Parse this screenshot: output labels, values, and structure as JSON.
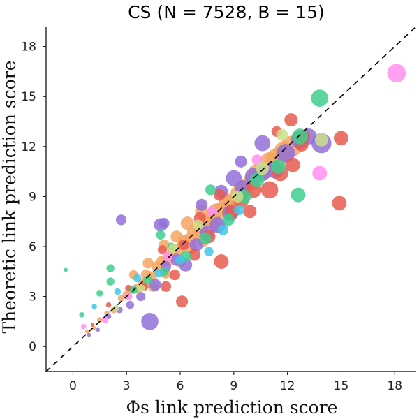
{
  "chart_data": {
    "type": "scatter",
    "title": "CS (N = 7528, B = 15)",
    "xlabel": "Φs link prediction score",
    "ylabel": "Theoretic link prediction score",
    "xlim": [
      -1.5,
      19.2
    ],
    "ylim": [
      -1.5,
      19.2
    ],
    "xticks": [
      0,
      3,
      6,
      9,
      12,
      15,
      18
    ],
    "yticks": [
      0,
      3,
      6,
      9,
      12,
      15,
      18
    ],
    "grid": false,
    "reference_line": "y = x (dashed)",
    "series": [
      {
        "color": "#f4a460",
        "points": [
          [
            0.8,
            0.9,
            3
          ],
          [
            1.2,
            1.1,
            3
          ],
          [
            1.5,
            1.6,
            4
          ],
          [
            1.9,
            2.0,
            4
          ],
          [
            2.3,
            2.2,
            5
          ],
          [
            2.7,
            2.9,
            5
          ],
          [
            3.0,
            3.1,
            6
          ],
          [
            3.3,
            3.4,
            6
          ],
          [
            3.6,
            3.5,
            7
          ],
          [
            3.9,
            3.8,
            7
          ],
          [
            4.1,
            4.3,
            8
          ],
          [
            4.4,
            4.2,
            8
          ],
          [
            4.7,
            4.8,
            8
          ],
          [
            5.0,
            5.1,
            9
          ],
          [
            5.3,
            5.2,
            9
          ],
          [
            5.6,
            5.7,
            9
          ],
          [
            5.9,
            5.8,
            10
          ],
          [
            6.2,
            6.3,
            10
          ],
          [
            6.5,
            6.4,
            10
          ],
          [
            6.8,
            6.9,
            11
          ],
          [
            7.1,
            7.0,
            11
          ],
          [
            7.4,
            7.5,
            11
          ],
          [
            7.7,
            7.6,
            12
          ],
          [
            8.0,
            8.1,
            12
          ],
          [
            8.3,
            8.2,
            12
          ],
          [
            8.6,
            8.7,
            12
          ],
          [
            8.9,
            8.6,
            13
          ],
          [
            9.3,
            9.2,
            13
          ],
          [
            9.6,
            9.5,
            13
          ],
          [
            10.0,
            9.9,
            13
          ],
          [
            10.3,
            10.4,
            14
          ],
          [
            10.7,
            10.6,
            14
          ],
          [
            11.0,
            11.1,
            14
          ],
          [
            11.4,
            11.3,
            15
          ],
          [
            11.8,
            11.7,
            15
          ],
          [
            12.2,
            12.0,
            16
          ],
          [
            4.5,
            3.6,
            8
          ],
          [
            5.2,
            4.4,
            8
          ],
          [
            6.0,
            5.1,
            9
          ],
          [
            6.6,
            5.9,
            9
          ],
          [
            7.3,
            6.4,
            10
          ],
          [
            8.1,
            7.2,
            10
          ],
          [
            3.4,
            4.3,
            7
          ],
          [
            4.2,
            5.0,
            8
          ],
          [
            5.1,
            6.1,
            8
          ],
          [
            5.8,
            6.6,
            9
          ],
          [
            6.4,
            7.4,
            10
          ],
          [
            7.2,
            8.1,
            10
          ]
        ]
      },
      {
        "color": "#9370db",
        "points": [
          [
            0.9,
            0.7,
            3
          ],
          [
            1.4,
            1.0,
            3
          ],
          [
            2.0,
            1.8,
            4
          ],
          [
            2.6,
            2.2,
            5
          ],
          [
            3.2,
            2.5,
            6
          ],
          [
            3.8,
            3.0,
            7
          ],
          [
            4.3,
            1.5,
            13
          ],
          [
            4.6,
            3.7,
            9
          ],
          [
            5.2,
            4.8,
            8
          ],
          [
            5.8,
            5.2,
            9
          ],
          [
            6.3,
            4.9,
            10
          ],
          [
            6.9,
            6.1,
            10
          ],
          [
            7.5,
            6.8,
            11
          ],
          [
            8.1,
            7.3,
            12
          ],
          [
            8.8,
            8.0,
            12
          ],
          [
            9.5,
            9.5,
            12
          ],
          [
            10.1,
            10.2,
            13
          ],
          [
            10.6,
            10.4,
            12
          ],
          [
            11.3,
            10.6,
            13
          ],
          [
            11.9,
            11.6,
            14
          ],
          [
            12.7,
            12.4,
            14
          ],
          [
            13.2,
            12.6,
            12
          ],
          [
            13.9,
            12.2,
            15
          ],
          [
            9.0,
            10.1,
            12
          ],
          [
            8.3,
            9.3,
            10
          ],
          [
            10.6,
            12.2,
            12
          ],
          [
            9.4,
            11.1,
            9
          ],
          [
            5.1,
            7.4,
            8
          ],
          [
            2.7,
            7.6,
            8
          ],
          [
            4.9,
            7.3,
            10
          ],
          [
            7.2,
            8.5,
            9
          ]
        ]
      },
      {
        "color": "#e65a50",
        "points": [
          [
            1.1,
            1.3,
            3
          ],
          [
            2.0,
            2.5,
            4
          ],
          [
            3.1,
            3.5,
            5
          ],
          [
            4.0,
            3.6,
            6
          ],
          [
            5.2,
            3.6,
            8
          ],
          [
            5.7,
            4.3,
            8
          ],
          [
            6.1,
            2.7,
            9
          ],
          [
            6.8,
            5.5,
            9
          ],
          [
            7.6,
            6.6,
            10
          ],
          [
            8.3,
            5.1,
            11
          ],
          [
            8.9,
            8.1,
            11
          ],
          [
            9.4,
            8.8,
            12
          ],
          [
            10.1,
            9.4,
            12
          ],
          [
            11.0,
            9.4,
            13
          ],
          [
            11.6,
            10.4,
            12
          ],
          [
            12.3,
            10.9,
            11
          ],
          [
            12.8,
            12.1,
            10
          ],
          [
            12.2,
            13.6,
            10
          ],
          [
            12.9,
            12.6,
            10
          ],
          [
            15.0,
            12.5,
            11
          ],
          [
            14.9,
            8.6,
            11
          ],
          [
            11.4,
            12.9,
            8
          ],
          [
            9.9,
            8.1,
            10
          ],
          [
            7.1,
            7.7,
            9
          ],
          [
            8.2,
            9.1,
            9
          ],
          [
            5.0,
            5.8,
            7
          ],
          [
            6.2,
            6.1,
            8
          ]
        ]
      },
      {
        "color": "#3ecf8e",
        "points": [
          [
            0.5,
            1.9,
            4
          ],
          [
            -0.4,
            4.6,
            3
          ],
          [
            1.5,
            3.2,
            5
          ],
          [
            2.1,
            4.7,
            6
          ],
          [
            3.4,
            3.4,
            6
          ],
          [
            4.2,
            4.0,
            7
          ],
          [
            5.1,
            4.5,
            7
          ],
          [
            6.3,
            5.4,
            8
          ],
          [
            7.4,
            6.5,
            9
          ],
          [
            8.7,
            7.6,
            9
          ],
          [
            9.6,
            9.0,
            10
          ],
          [
            10.3,
            10.0,
            11
          ],
          [
            11.5,
            10.8,
            11
          ],
          [
            12.6,
            9.1,
            11
          ],
          [
            12.7,
            12.6,
            12
          ],
          [
            13.8,
            14.9,
            13
          ],
          [
            4.9,
            6.7,
            7
          ],
          [
            5.5,
            6.0,
            6
          ],
          [
            7.7,
            9.4,
            8
          ],
          [
            2.1,
            3.9,
            6
          ]
        ]
      },
      {
        "color": "#ff8ff0",
        "points": [
          [
            18.1,
            16.4,
            14
          ],
          [
            13.8,
            10.4,
            11
          ],
          [
            10.3,
            11.2,
            8
          ],
          [
            7.8,
            8.1,
            8
          ],
          [
            5.3,
            5.4,
            7
          ],
          [
            3.1,
            3.0,
            6
          ],
          [
            1.8,
            1.6,
            5
          ],
          [
            0.6,
            1.2,
            4
          ]
        ]
      },
      {
        "color": "#c9e08a",
        "points": [
          [
            13.9,
            12.4,
            10
          ],
          [
            10.6,
            10.7,
            10
          ],
          [
            9.2,
            9.0,
            9
          ],
          [
            11.7,
            12.7,
            9
          ],
          [
            7.0,
            7.3,
            8
          ],
          [
            5.6,
            5.9,
            7
          ],
          [
            3.8,
            3.5,
            6
          ],
          [
            2.4,
            2.3,
            5
          ]
        ]
      },
      {
        "color": "#40c8e6",
        "points": [
          [
            1.2,
            2.4,
            4
          ],
          [
            2.5,
            3.3,
            5
          ],
          [
            3.6,
            4.1,
            6
          ],
          [
            4.8,
            4.4,
            6
          ],
          [
            6.0,
            5.2,
            7
          ],
          [
            7.6,
            5.7,
            7
          ],
          [
            8.4,
            7.0,
            8
          ],
          [
            9.3,
            8.2,
            8
          ]
        ]
      }
    ]
  }
}
